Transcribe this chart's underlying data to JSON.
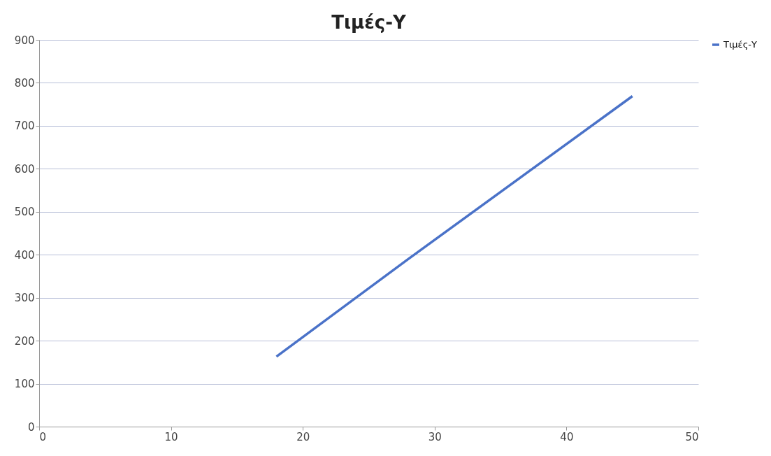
{
  "chart_data": {
    "type": "line",
    "title": "Τιμές-Y",
    "x": [
      18,
      28,
      45
    ],
    "series": [
      {
        "name": "Τιμές-Y",
        "color": "#4a72c8",
        "values": [
          163,
          390,
          769
        ]
      }
    ],
    "xlim": [
      0,
      50
    ],
    "xticks": [
      0,
      10,
      20,
      30,
      40,
      50
    ],
    "ylim": [
      0,
      900
    ],
    "yticks": [
      0,
      100,
      200,
      300,
      400,
      500,
      600,
      700,
      800,
      900
    ],
    "grid": "y",
    "legend": "right",
    "marker": "none",
    "line_style": "solid"
  }
}
